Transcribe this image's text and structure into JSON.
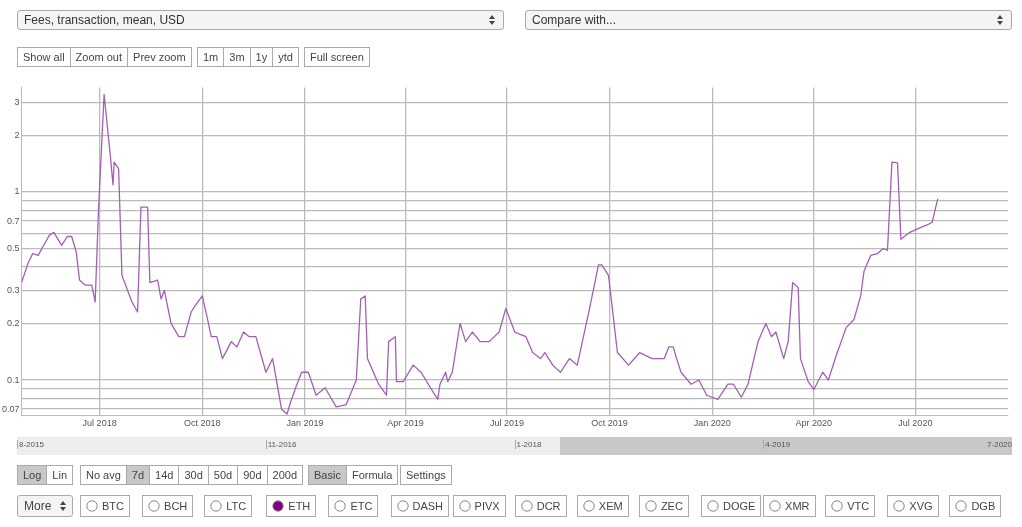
{
  "chart_data": {
    "type": "line",
    "title": "Fees, transaction, mean, USD",
    "x": [
      "2018-04-22",
      "2018-04-28",
      "2018-05-02",
      "2018-05-07",
      "2018-05-11",
      "2018-05-17",
      "2018-05-21",
      "2018-05-28",
      "2018-06-02",
      "2018-06-06",
      "2018-06-10",
      "2018-06-13",
      "2018-06-18",
      "2018-06-24",
      "2018-06-27",
      "2018-06-30",
      "2018-07-05",
      "2018-07-10",
      "2018-07-13",
      "2018-07-14",
      "2018-07-18",
      "2018-07-21",
      "2018-07-26",
      "2018-07-30",
      "2018-08-04",
      "2018-08-07",
      "2018-08-13",
      "2018-08-15",
      "2018-08-22",
      "2018-08-25",
      "2018-08-28",
      "2018-09-03",
      "2018-09-10",
      "2018-09-15",
      "2018-09-21",
      "2018-09-25",
      "2018-10-01",
      "2018-10-05",
      "2018-10-09",
      "2018-10-14",
      "2018-10-19",
      "2018-10-27",
      "2018-11-01",
      "2018-11-07",
      "2018-11-12",
      "2018-11-18",
      "2018-11-27",
      "2018-12-03",
      "2018-12-11",
      "2018-12-16",
      "2018-12-19",
      "2018-12-24",
      "2018-12-29",
      "2019-01-04",
      "2019-01-11",
      "2019-01-19",
      "2019-01-29",
      "2019-02-07",
      "2019-02-16",
      "2019-02-20",
      "2019-02-24",
      "2019-02-26",
      "2019-03-08",
      "2019-03-15",
      "2019-03-17",
      "2019-03-23",
      "2019-03-24",
      "2019-03-30",
      "2019-04-08",
      "2019-04-15",
      "2019-04-26",
      "2019-04-30",
      "2019-05-02",
      "2019-05-07",
      "2019-05-09",
      "2019-05-13",
      "2019-05-20",
      "2019-05-25",
      "2019-05-31",
      "2019-06-07",
      "2019-06-15",
      "2019-06-24",
      "2019-06-30",
      "2019-07-08",
      "2019-07-18",
      "2019-07-24",
      "2019-07-31",
      "2019-08-04",
      "2019-08-11",
      "2019-08-18",
      "2019-08-26",
      "2019-09-02",
      "2019-09-13",
      "2019-09-21",
      "2019-09-24",
      "2019-09-30",
      "2019-10-08",
      "2019-10-18",
      "2019-10-28",
      "2019-11-08",
      "2019-11-19",
      "2019-11-23",
      "2019-11-27",
      "2019-11-30",
      "2019-12-04",
      "2019-12-13",
      "2019-12-20",
      "2019-12-27",
      "2020-01-06",
      "2020-01-15",
      "2020-01-20",
      "2020-01-27",
      "2020-02-02",
      "2020-02-11",
      "2020-02-18",
      "2020-02-23",
      "2020-02-27",
      "2020-03-05",
      "2020-03-09",
      "2020-03-13",
      "2020-03-18",
      "2020-03-20",
      "2020-03-27",
      "2020-04-01",
      "2020-04-09",
      "2020-04-14",
      "2020-04-22",
      "2020-04-30",
      "2020-05-07",
      "2020-05-13",
      "2020-05-16",
      "2020-05-22",
      "2020-05-28",
      "2020-06-02",
      "2020-06-06",
      "2020-06-10",
      "2020-06-15",
      "2020-06-18",
      "2020-06-26",
      "2020-07-04",
      "2020-07-12",
      "2020-07-16",
      "2020-07-21"
    ],
    "series": [
      {
        "color": "#a35fb5",
        "values": [
          0.33,
          0.42,
          0.47,
          0.46,
          0.51,
          0.59,
          0.61,
          0.52,
          0.58,
          0.58,
          0.48,
          0.34,
          0.32,
          0.32,
          0.26,
          0.81,
          3.3,
          1.69,
          1.09,
          1.44,
          1.33,
          0.36,
          0.3,
          0.26,
          0.23,
          0.83,
          0.83,
          0.33,
          0.34,
          0.27,
          0.3,
          0.2,
          0.17,
          0.17,
          0.23,
          0.25,
          0.28,
          0.22,
          0.17,
          0.17,
          0.13,
          0.16,
          0.15,
          0.18,
          0.17,
          0.17,
          0.11,
          0.13,
          0.07,
          0.066,
          0.076,
          0.092,
          0.11,
          0.11,
          0.083,
          0.091,
          0.072,
          0.074,
          0.1,
          0.27,
          0.28,
          0.13,
          0.095,
          0.083,
          0.16,
          0.17,
          0.098,
          0.098,
          0.12,
          0.11,
          0.086,
          0.079,
          0.095,
          0.11,
          0.098,
          0.11,
          0.2,
          0.16,
          0.18,
          0.16,
          0.16,
          0.18,
          0.24,
          0.18,
          0.17,
          0.14,
          0.13,
          0.14,
          0.12,
          0.11,
          0.13,
          0.12,
          0.24,
          0.41,
          0.41,
          0.36,
          0.14,
          0.12,
          0.14,
          0.13,
          0.13,
          0.15,
          0.15,
          0.13,
          0.11,
          0.095,
          0.1,
          0.083,
          0.079,
          0.095,
          0.095,
          0.081,
          0.095,
          0.16,
          0.2,
          0.17,
          0.18,
          0.13,
          0.16,
          0.33,
          0.31,
          0.13,
          0.098,
          0.089,
          0.11,
          0.1,
          0.14,
          0.19,
          0.21,
          0.28,
          0.38,
          0.46,
          0.47,
          0.5,
          0.49,
          1.44,
          1.43,
          0.56,
          0.61,
          0.64,
          0.67,
          0.69,
          0.92
        ]
      }
    ],
    "xlim": [
      "2018-04-22",
      "2020-09-22"
    ],
    "xticks": [
      {
        "value": "2018-07-01",
        "label": "Jul 2018"
      },
      {
        "value": "2018-10-01",
        "label": "Oct 2018"
      },
      {
        "value": "2019-01-01",
        "label": "Jan 2019"
      },
      {
        "value": "2019-04-01",
        "label": "Apr 2019"
      },
      {
        "value": "2019-07-01",
        "label": "Jul 2019"
      },
      {
        "value": "2019-10-01",
        "label": "Oct 2019"
      },
      {
        "value": "2020-01-01",
        "label": "Jan 2020"
      },
      {
        "value": "2020-04-01",
        "label": "Apr 2020"
      },
      {
        "value": "2020-07-01",
        "label": "Jul 2020"
      }
    ],
    "ylim": [
      0.065,
      3.6
    ],
    "yticks": [
      0.07,
      {
        "value": 0.08,
        "label": null
      },
      {
        "value": 0.09,
        "label": null
      },
      0.1,
      0.2,
      0.3,
      {
        "value": 0.4,
        "label": null
      },
      0.5,
      {
        "value": 0.6,
        "label": null
      },
      0.7,
      {
        "value": 0.8,
        "label": null
      },
      {
        "value": 0.9,
        "label": null
      },
      1,
      2,
      3
    ],
    "log": true,
    "grid": true,
    "annotations": [
      "Compare with...",
      "Show all",
      "Zoom out",
      "Prev zoom",
      "1m",
      "3m",
      "1y",
      "ytd",
      "Full screen",
      "8-2015",
      "11-2016",
      "1-2018",
      "4-2019",
      "7-2020",
      "Log",
      "Lin",
      "No avg",
      "7d",
      "14d",
      "30d",
      "50d",
      "90d",
      "200d",
      "Basic",
      "Formula",
      "Settings",
      "More",
      "BTC",
      "BCH",
      "LTC",
      "ETH",
      "ETC",
      "DASH",
      "PIVX",
      "DCR",
      "XEM",
      "ZEC",
      "DOGE",
      "XMR",
      "VTC",
      "XVG",
      "DGB"
    ]
  }
}
